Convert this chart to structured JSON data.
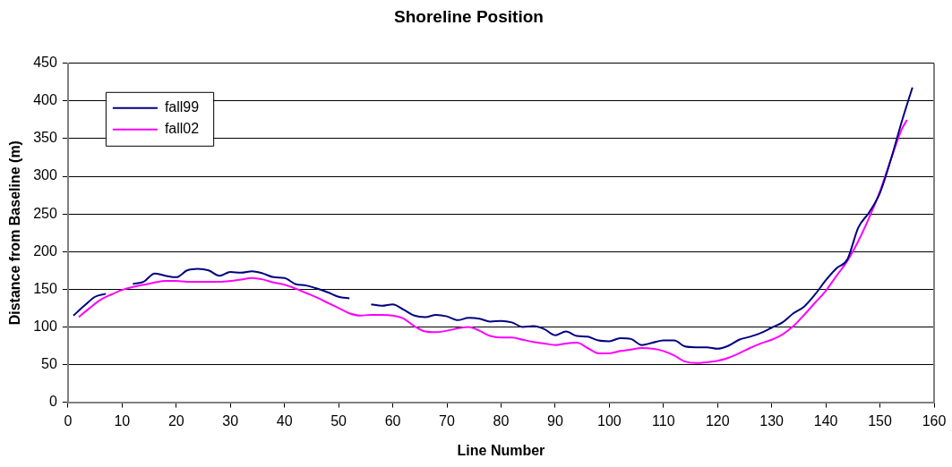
{
  "chart_data": {
    "type": "line",
    "title": "Shoreline Position",
    "xlabel": "Line Number",
    "ylabel": "Distance from Baseline (m)",
    "xlim": [
      0,
      160
    ],
    "xticks": [
      0,
      10,
      20,
      30,
      40,
      50,
      60,
      70,
      80,
      90,
      100,
      110,
      120,
      130,
      140,
      150,
      160
    ],
    "ylim": [
      0,
      450
    ],
    "yticks": [
      0,
      50,
      100,
      150,
      200,
      250,
      300,
      350,
      400,
      450
    ],
    "grid": "y",
    "legend": "top left",
    "marker": "none",
    "line_style": "solid",
    "series": [
      {
        "name": "fall99",
        "color": "#000080",
        "x": [
          1,
          3,
          5,
          7,
          9,
          12,
          14,
          16,
          18,
          20,
          22,
          24,
          26,
          28,
          30,
          32,
          34,
          36,
          38,
          40,
          42,
          44,
          46,
          48,
          50,
          52,
          54,
          56,
          58,
          60,
          62,
          64,
          66,
          68,
          70,
          72,
          74,
          76,
          78,
          80,
          82,
          84,
          86,
          88,
          90,
          92,
          94,
          96,
          98,
          100,
          102,
          104,
          106,
          108,
          110,
          112,
          114,
          116,
          118,
          120,
          122,
          124,
          126,
          128,
          130,
          132,
          134,
          136,
          138,
          140,
          142,
          144,
          146,
          148,
          150,
          152,
          154,
          156
        ],
        "values": [
          115,
          128,
          140,
          144,
          null,
          157,
          160,
          171,
          168,
          166,
          175,
          177,
          175,
          168,
          173,
          172,
          174,
          171,
          166,
          165,
          157,
          155,
          151,
          146,
          140,
          138,
          null,
          130,
          128,
          130,
          123,
          115,
          113,
          116,
          114,
          109,
          112,
          111,
          107,
          108,
          106,
          100,
          101,
          97,
          89,
          94,
          88,
          87,
          82,
          81,
          85,
          84,
          76,
          79,
          82,
          82,
          74,
          73,
          73,
          71,
          75,
          83,
          87,
          92,
          99,
          106,
          118,
          127,
          143,
          162,
          178,
          190,
          232,
          252,
          278,
          322,
          372,
          418
        ]
      },
      {
        "name": "fall02",
        "color": "#ff00ff",
        "x": [
          2,
          4,
          6,
          8,
          10,
          12,
          14,
          16,
          18,
          20,
          22,
          24,
          26,
          28,
          30,
          32,
          34,
          36,
          38,
          40,
          42,
          44,
          46,
          48,
          50,
          52,
          54,
          56,
          58,
          60,
          62,
          64,
          66,
          68,
          70,
          72,
          74,
          76,
          78,
          80,
          82,
          84,
          86,
          88,
          90,
          92,
          94,
          96,
          98,
          100,
          102,
          104,
          106,
          108,
          110,
          112,
          114,
          116,
          118,
          120,
          122,
          124,
          126,
          128,
          130,
          132,
          134,
          136,
          138,
          140,
          142,
          144,
          146,
          148,
          150,
          152,
          154,
          155
        ],
        "values": [
          113,
          125,
          136,
          143,
          149,
          153,
          156,
          159,
          161,
          161,
          160,
          160,
          160,
          160,
          161,
          163,
          165,
          163,
          159,
          156,
          151,
          145,
          139,
          132,
          125,
          118,
          115,
          116,
          116,
          115,
          111,
          101,
          94,
          93,
          95,
          98,
          100,
          95,
          88,
          86,
          86,
          83,
          80,
          78,
          76,
          78,
          79,
          72,
          65,
          65,
          68,
          70,
          72,
          71,
          68,
          62,
          54,
          52,
          53,
          55,
          59,
          65,
          72,
          78,
          83,
          90,
          101,
          116,
          132,
          148,
          168,
          188,
          214,
          245,
          280,
          322,
          362,
          375
        ]
      }
    ]
  }
}
